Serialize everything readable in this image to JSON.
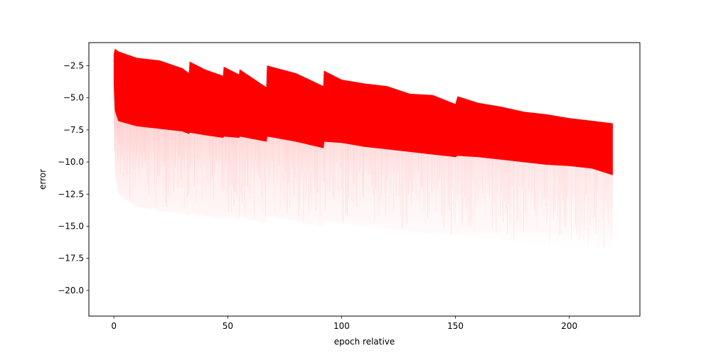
{
  "chart_data": {
    "type": "area",
    "title": "",
    "xlabel": "epoch relative",
    "ylabel": "error",
    "xlim": [
      -11,
      231
    ],
    "ylim": [
      -22.0,
      -0.7
    ],
    "xticks": [
      0,
      50,
      100,
      150,
      200
    ],
    "xtick_labels": [
      "0",
      "50",
      "100",
      "150",
      "200"
    ],
    "yticks": [
      -2.5,
      -5.0,
      -7.5,
      -10.0,
      -12.5,
      -15.0,
      -17.5,
      -20.0
    ],
    "ytick_labels": [
      "−2.5",
      "−5.0",
      "−7.5",
      "−10.0",
      "−12.5",
      "−15.0",
      "−17.5",
      "−20.0"
    ],
    "grid": false,
    "colors": {
      "series": "#ff0000"
    },
    "series": [
      {
        "name": "",
        "x": [
          0,
          0.5,
          2,
          10,
          20,
          30,
          33,
          33.3,
          40,
          48,
          48.3,
          55,
          55.3,
          67,
          67.3,
          80,
          92,
          92.3,
          100,
          110,
          120,
          130,
          140,
          150,
          151,
          160,
          170,
          180,
          190,
          200,
          210,
          219
        ],
        "upper": [
          -1.6,
          -1.2,
          -1.4,
          -1.9,
          -2.1,
          -2.7,
          -3.1,
          -2.2,
          -2.8,
          -3.3,
          -2.6,
          -3.2,
          -2.8,
          -4.2,
          -2.5,
          -3.1,
          -4.1,
          -2.9,
          -3.6,
          -3.9,
          -4.1,
          -4.7,
          -4.8,
          -5.5,
          -4.9,
          -5.4,
          -5.7,
          -6.1,
          -6.3,
          -6.6,
          -6.8,
          -7.0
        ],
        "dense_lower": [
          -4.0,
          -6.0,
          -6.8,
          -7.2,
          -7.4,
          -7.6,
          -7.8,
          -7.7,
          -7.9,
          -8.1,
          -8.0,
          -8.1,
          -8.0,
          -8.4,
          -8.0,
          -8.4,
          -8.9,
          -8.4,
          -8.5,
          -8.8,
          -9.0,
          -9.2,
          -9.4,
          -9.6,
          -9.5,
          -9.6,
          -9.8,
          -10.0,
          -10.2,
          -10.3,
          -10.5,
          -11.0
        ],
        "faint_lower": [
          -7.0,
          -11.0,
          -12.5,
          -13.5,
          -13.8,
          -14.0,
          -14.2,
          -14.0,
          -14.2,
          -14.5,
          -14.3,
          -14.5,
          -14.3,
          -14.8,
          -14.2,
          -14.6,
          -15.1,
          -14.6,
          -14.8,
          -15.0,
          -15.2,
          -15.4,
          -15.6,
          -15.8,
          -15.7,
          -15.9,
          -16.0,
          -16.3,
          -16.5,
          -16.7,
          -16.8,
          -17.0
        ]
      }
    ]
  }
}
